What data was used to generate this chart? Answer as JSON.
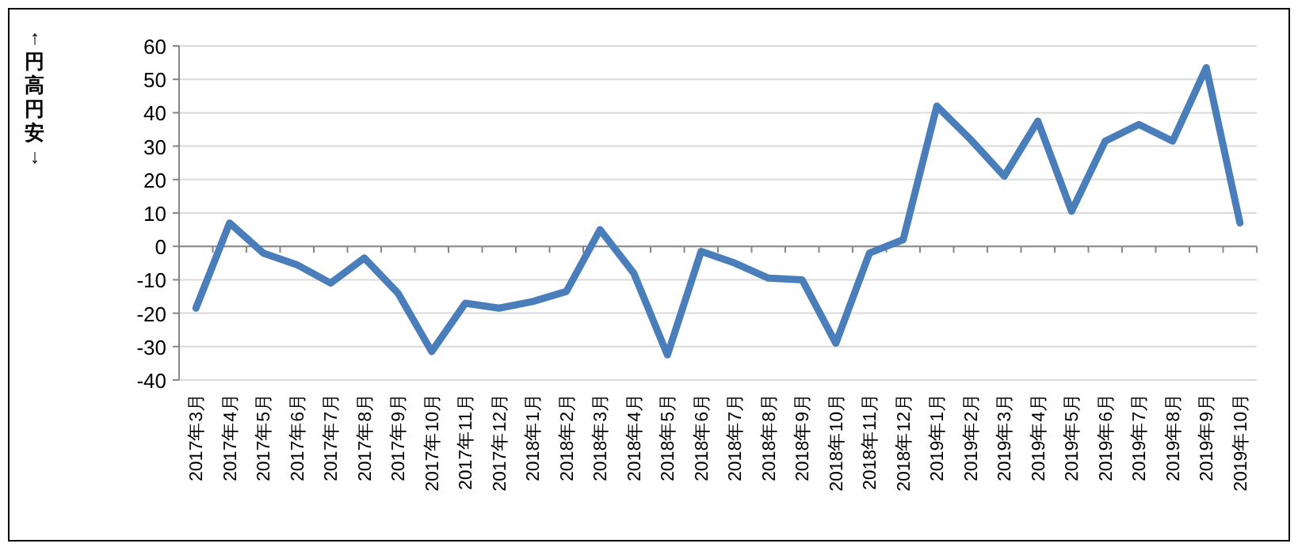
{
  "chart_data": {
    "type": "line",
    "ylabel": "↑円高",
    "annotations": [
      "円安↓"
    ],
    "categories": [
      "2017年3月",
      "2017年4月",
      "2017年5月",
      "2017年6月",
      "2017年7月",
      "2017年8月",
      "2017年9月",
      "2017年10月",
      "2017年11月",
      "2017年12月",
      "2018年1月",
      "2018年2月",
      "2018年3月",
      "2018年4月",
      "2018年5月",
      "2018年6月",
      "2018年7月",
      "2018年8月",
      "2018年9月",
      "2018年10月",
      "2018年11月",
      "2018年12月",
      "2019年1月",
      "2019年2月",
      "2019年3月",
      "2019年4月",
      "2019年5月",
      "2019年6月",
      "2019年7月",
      "2019年8月",
      "2019年9月",
      "2019年10月"
    ],
    "series": [
      {
        "color": "#4a7ebb",
        "values": [
          -18.5,
          7,
          -2,
          -5.5,
          -11,
          -3.5,
          -14,
          -31.5,
          -17,
          -18.5,
          -16.5,
          -13.5,
          5,
          -8,
          -32.5,
          -1.5,
          -5,
          -9.5,
          -10,
          -29,
          -2,
          2,
          42,
          32,
          21,
          37.5,
          10.5,
          31.5,
          36.5,
          31.5,
          53.5,
          7
        ]
      }
    ],
    "ylim": [
      -40,
      60
    ],
    "yticks": [
      -40,
      -30,
      -20,
      -10,
      0,
      10,
      20,
      30,
      40,
      50,
      60
    ],
    "grid": "y",
    "marker": "none",
    "line_style": "solid"
  }
}
